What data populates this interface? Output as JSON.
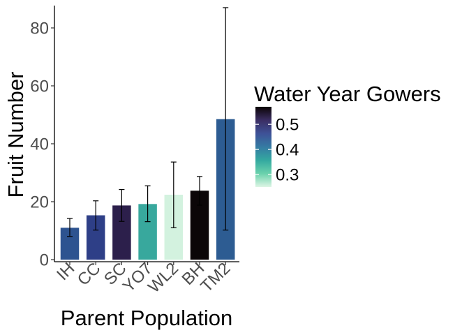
{
  "chart_data": {
    "type": "bar",
    "xlabel": "Parent Population",
    "ylabel": "Fruit Number",
    "ylim": [
      0,
      88
    ],
    "yticks": [
      0,
      20,
      40,
      60,
      80
    ],
    "grid": false,
    "categories": [
      "IH",
      "CC",
      "SC",
      "YO7",
      "WL2",
      "BH",
      "TM2"
    ],
    "values": [
      11.0,
      15.3,
      18.7,
      19.2,
      22.4,
      23.8,
      48.5
    ],
    "error_low": [
      8.0,
      10.2,
      13.2,
      13.1,
      11.0,
      18.8,
      10.2
    ],
    "error_high": [
      14.2,
      20.3,
      24.2,
      25.5,
      33.7,
      28.7,
      87.0
    ],
    "fill_values": [
      0.4,
      0.43,
      0.5,
      0.32,
      0.26,
      0.57,
      0.4
    ],
    "bar_colors": [
      "#2d5390",
      "#2e3f87",
      "#2c1f4b",
      "#38a89d",
      "#d3f2df",
      "#0b0608",
      "#2d5c92"
    ],
    "legend": {
      "title": "Water Year Gowers",
      "position": "right",
      "ticks": [
        0.3,
        0.4,
        0.5
      ],
      "range": [
        0.25,
        0.57
      ],
      "colorscale": [
        "#def5e5",
        "#6bd2ac",
        "#34a9a0",
        "#357ba3",
        "#3e5197",
        "#3b2e63",
        "#0b0405"
      ]
    }
  }
}
